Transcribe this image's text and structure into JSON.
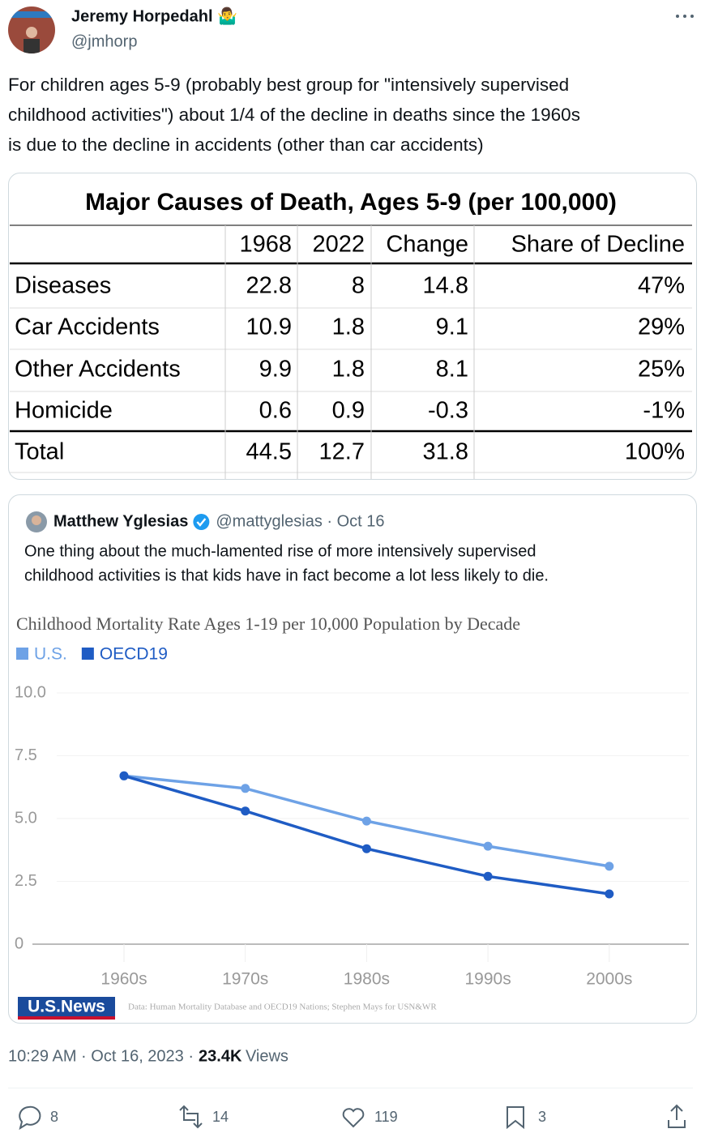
{
  "author": {
    "name": "Jeremy Horpedahl 🤷‍♂️",
    "handle": "@jmhorp"
  },
  "text_lines": [
    "For children ages 5-9 (probably best group for \"intensively supervised",
    "childhood activities\") about 1/4 of the decline in deaths since the 1960s",
    "is due to the decline in accidents (other than car accidents)"
  ],
  "table": {
    "title": "Major Causes of Death, Ages 5-9 (per 100,000)",
    "columns": [
      "1968",
      "2022",
      "Change",
      "Share of Decline"
    ],
    "rows": [
      [
        "Diseases",
        "22.8",
        "8",
        "14.8",
        "47%"
      ],
      [
        "Car Accidents",
        "10.9",
        "1.8",
        "9.1",
        "29%"
      ],
      [
        "Other Accidents",
        "9.9",
        "1.8",
        "8.1",
        "25%"
      ],
      [
        "Homicide",
        "0.6",
        "0.9",
        "-0.3",
        "-1%"
      ],
      [
        "Total",
        "44.5",
        "12.7",
        "31.8",
        "100%"
      ]
    ]
  },
  "quote": {
    "name": "Matthew Yglesias",
    "meta": "@mattyglesias · Oct 16",
    "text_lines": [
      "One thing about the much-lamented rise of more intensively supervised",
      "childhood activities is that kids have in fact become a lot less likely to die."
    ]
  },
  "chart_data": {
    "type": "line",
    "title": "Childhood Mortality Rate Ages 1-19 per 10,000 Population by Decade",
    "categories": [
      "1960s",
      "1970s",
      "1980s",
      "1990s",
      "2000s"
    ],
    "series": [
      {
        "name": "U.S.",
        "color": "#6ea2e6",
        "values": [
          6.7,
          6.2,
          4.9,
          3.9,
          3.1
        ]
      },
      {
        "name": "OECD19",
        "color": "#1f5cc4",
        "values": [
          6.7,
          5.3,
          3.8,
          2.7,
          2.0
        ]
      }
    ],
    "ylim": [
      0,
      10
    ],
    "yticks": [
      0,
      {
        "value": 2.5,
        "label": "2.5"
      },
      {
        "value": 5,
        "label": "5.0"
      },
      7.5,
      {
        "value": 10,
        "label": "10.0"
      }
    ],
    "grid": true,
    "logo": "U.S.News",
    "source": "Data: Human Mortality Database and OECD19 Nations; Stephen Mays for USN&WR"
  },
  "timestamp": "10:29 AM · Oct 16, 2023 ·",
  "views_count": "23.4K",
  "views_label": "Views",
  "actions": {
    "replies": 8,
    "reposts": 14,
    "likes": 119,
    "bookmarks": 3
  }
}
